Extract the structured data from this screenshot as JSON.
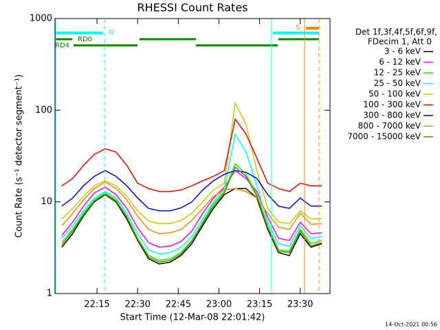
{
  "chart_data": {
    "type": "line",
    "title": "RHESSI Count Rates",
    "x_label": "Start Time (12-Mar-08 22:01:42)",
    "y_label": "Count Rate (s⁻¹ detector segment⁻¹)",
    "legend_header": [
      "Det 1f,3f,4f,5f,6f,9f,",
      "FDecim 1, Att 0"
    ],
    "footer": "14-Oct-2021 00:56",
    "annotations": [
      "N",
      "RD0",
      "RD4",
      "S"
    ],
    "log_y": true,
    "xlim": [
      1319.5,
      1421
    ],
    "ylim": [
      1,
      1000
    ],
    "xticks": [
      {
        "value": 1335,
        "label": "22:15"
      },
      {
        "value": 1350,
        "label": "22:30"
      },
      {
        "value": 1365,
        "label": "22:45"
      },
      {
        "value": 1380,
        "label": "23:00"
      },
      {
        "value": 1395,
        "label": "23:15"
      },
      {
        "value": 1410,
        "label": "23:30"
      }
    ],
    "yticks": [
      1,
      10,
      100,
      1000
    ],
    "x": [
      1322,
      1326,
      1330,
      1334,
      1338,
      1342,
      1346,
      1350,
      1354,
      1358,
      1362,
      1366,
      1370,
      1374,
      1378,
      1382,
      1386,
      1390,
      1394,
      1398,
      1402,
      1406,
      1410,
      1414,
      1418
    ],
    "series": [
      {
        "name": "3 - 6 keV",
        "color": "#000000",
        "values": [
          3.2,
          4.5,
          7,
          10,
          12,
          10,
          6.5,
          3.8,
          2.4,
          2.1,
          2.2,
          2.6,
          3.5,
          5.5,
          8.5,
          12,
          14,
          14,
          11,
          5,
          2.8,
          2.6,
          4.5,
          3.2,
          3.5
        ]
      },
      {
        "name": "6 - 12 keV",
        "color": "#ff00ff",
        "values": [
          4.3,
          6,
          9,
          12.5,
          14.5,
          12,
          8.5,
          5.2,
          3.6,
          3.2,
          3.3,
          3.7,
          4.8,
          7.5,
          11,
          14.5,
          22,
          18,
          13,
          6.8,
          4,
          3.8,
          6,
          4.5,
          4.6
        ]
      },
      {
        "name": "12 - 25 keV",
        "color": "#00ff00",
        "values": [
          3.6,
          5,
          7.5,
          10.5,
          12.5,
          10.5,
          7,
          4,
          2.6,
          2.3,
          2.4,
          2.8,
          3.8,
          6,
          9.5,
          13,
          26,
          20,
          12,
          5.5,
          3,
          2.9,
          5,
          3.5,
          3.8
        ]
      },
      {
        "name": "25 - 50 keV",
        "color": "#00ffff",
        "values": [
          4,
          5.5,
          8,
          11,
          13,
          11,
          7.5,
          4.5,
          3,
          2.7,
          2.8,
          3.2,
          4.2,
          6.5,
          10,
          14,
          55,
          35,
          15,
          6,
          3.5,
          3.3,
          5.5,
          4,
          4.2
        ]
      },
      {
        "name": "50 - 100 keV",
        "color": "#cccc00",
        "values": [
          6.5,
          8.5,
          11.5,
          15,
          17,
          15,
          11.5,
          8,
          6.2,
          5.8,
          5.8,
          6.3,
          7.5,
          10,
          13.5,
          16,
          120,
          70,
          22,
          8.5,
          6,
          5.8,
          8,
          6.5,
          6.6
        ]
      },
      {
        "name": "100 - 300 keV",
        "color": "#ff0000",
        "values": [
          15,
          18,
          25,
          33,
          38,
          35,
          25,
          16,
          14,
          13,
          13,
          13.5,
          15,
          17,
          19,
          22,
          80,
          55,
          30,
          16,
          14,
          13,
          16,
          15,
          15
        ]
      },
      {
        "name": "300 - 800 keV",
        "color": "#0000ff",
        "values": [
          9,
          11,
          15,
          19,
          22,
          19,
          15,
          11,
          8.5,
          8,
          8,
          8.6,
          10,
          13.5,
          17,
          20,
          22,
          21,
          18,
          12,
          9,
          8.5,
          11,
          9,
          9
        ]
      },
      {
        "name": "800 - 7000 keV",
        "color": "#ff8800",
        "values": [
          5.5,
          7.5,
          10.5,
          14,
          16.5,
          14,
          10.5,
          7,
          5,
          4.5,
          4.6,
          5,
          6.3,
          8.5,
          11.5,
          13.5,
          14,
          13,
          11,
          7.5,
          5.3,
          5,
          7.5,
          5.7,
          5.8
        ]
      },
      {
        "name": "7000 - 15000 keV",
        "color": "#808000",
        "values": [
          3.4,
          4.8,
          7.2,
          10.2,
          12.2,
          10.2,
          6.8,
          3.9,
          2.5,
          2.2,
          2.3,
          2.7,
          3.7,
          5.8,
          9,
          12.5,
          24,
          19,
          11.5,
          5.2,
          2.9,
          2.8,
          4.8,
          3.3,
          3.6
        ]
      }
    ]
  }
}
